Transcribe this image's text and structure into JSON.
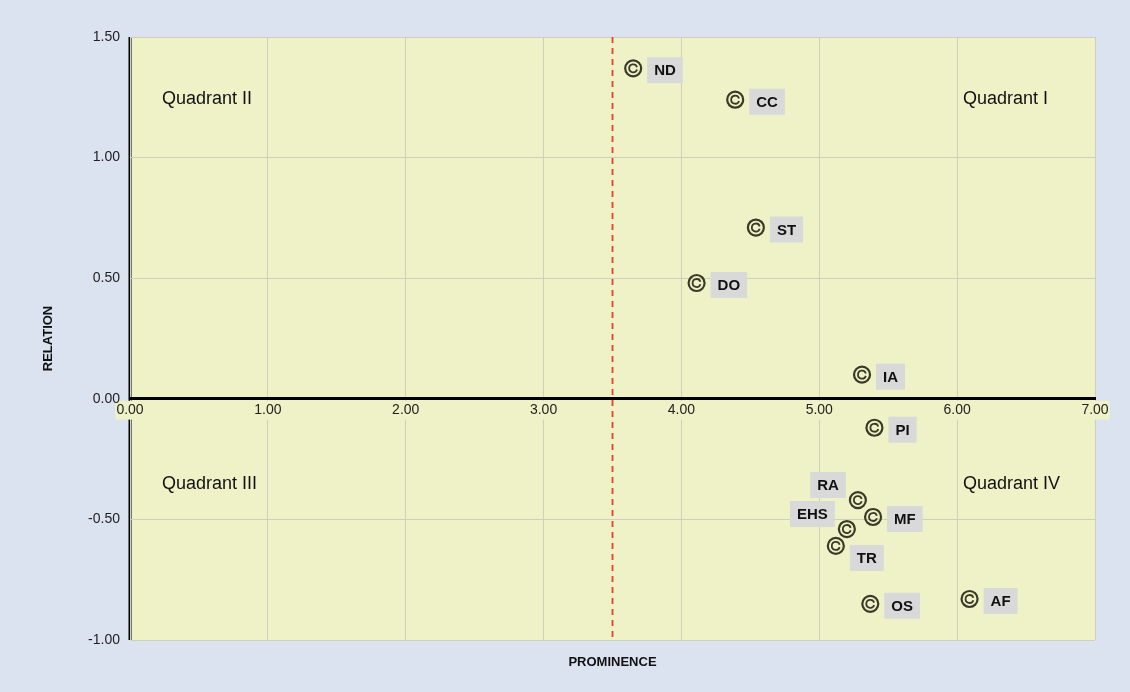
{
  "chart_data": {
    "type": "scatter",
    "xlabel": "PROMINENCE",
    "ylabel": "RELATION",
    "x": [
      3.65,
      4.39,
      4.54,
      4.11,
      5.31,
      5.4,
      5.28,
      5.39,
      5.2,
      5.12,
      5.37,
      6.09
    ],
    "values": [
      1.37,
      1.24,
      0.71,
      0.48,
      0.1,
      -0.12,
      -0.42,
      -0.49,
      -0.54,
      -0.61,
      -0.85,
      -0.83
    ],
    "color": "#3a3a28",
    "marker": "circle",
    "grid": true,
    "legend": false,
    "xlim": [
      0,
      7
    ],
    "xticks": [
      {
        "value": 0,
        "label": "0.00"
      },
      {
        "value": 1,
        "label": "1.00"
      },
      {
        "value": 2,
        "label": "2.00"
      },
      {
        "value": 3,
        "label": "3.00"
      },
      {
        "value": 4,
        "label": "4.00"
      },
      {
        "value": 5,
        "label": "5.00"
      },
      {
        "value": 6,
        "label": "6.00"
      },
      {
        "value": 7,
        "label": "7.00"
      }
    ],
    "ylim": [
      -1,
      1.5
    ],
    "yticks": [
      {
        "value": -1,
        "label": "-1.00"
      },
      {
        "value": -0.5,
        "label": "-0.50"
      },
      {
        "value": 0,
        "label": "0.00"
      },
      {
        "value": 0.5,
        "label": "0.50"
      },
      {
        "value": 1,
        "label": "1.00"
      },
      {
        "value": 1.5,
        "label": "1.50"
      }
    ],
    "ref_lines": [
      {
        "axis": "x",
        "value": 3.5,
        "color": "#e8402a",
        "line_style": "dashed"
      }
    ],
    "annotations": [
      "Quadrant II",
      "Quadrant I",
      "Quadrant III",
      "Quadrant IV",
      {
        "text": "ND",
        "x": 3.65,
        "y": 1.37
      },
      {
        "text": "CC",
        "x": 4.39,
        "y": 1.24
      },
      {
        "text": "ST",
        "x": 4.54,
        "y": 0.71
      },
      {
        "text": "DO",
        "x": 4.11,
        "y": 0.48
      },
      {
        "text": "IA",
        "x": 5.31,
        "y": 0.1
      },
      {
        "text": "PI",
        "x": 5.4,
        "y": -0.12
      },
      {
        "text": "RA",
        "x": 5.28,
        "y": -0.42
      },
      {
        "text": "MF",
        "x": 5.39,
        "y": -0.49
      },
      {
        "text": "EHS",
        "x": 5.2,
        "y": -0.54
      },
      {
        "text": "TR",
        "x": 5.12,
        "y": -0.61
      },
      {
        "text": "OS",
        "x": 5.37,
        "y": -0.85
      },
      {
        "text": "AF",
        "x": 6.09,
        "y": -0.83
      }
    ]
  }
}
